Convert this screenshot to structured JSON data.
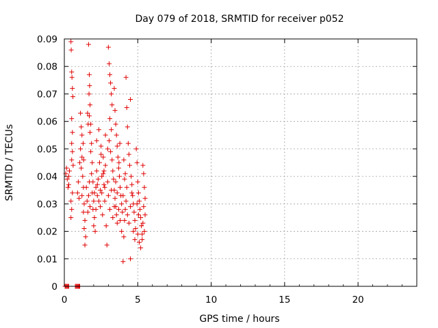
{
  "chart_data": {
    "type": "scatter",
    "title": "Day 079 of 2018, SRMTID for receiver p052",
    "xlabel": "GPS time / hours",
    "ylabel": "SRMTID / TECUs",
    "xlim": [
      0,
      24
    ],
    "ylim": [
      0,
      0.09
    ],
    "x_ticks": [
      0,
      5,
      10,
      15,
      20
    ],
    "x_tick_labels": [
      "0",
      "5",
      "10",
      "15",
      "20"
    ],
    "y_ticks": [
      0,
      0.01,
      0.02,
      0.03,
      0.04,
      0.05,
      0.06,
      0.07,
      0.08,
      0.09
    ],
    "y_tick_labels": [
      "0",
      "0.01",
      "0.02",
      "0.03",
      "0.04",
      "0.05",
      "0.06",
      "0.07",
      "0.08",
      "0.09"
    ],
    "grid": true,
    "marker": "plus",
    "series_color": "#e00000",
    "series": [
      {
        "name": "SRMTID",
        "points": [
          [
            0.05,
            0.0
          ],
          [
            0.1,
            0.0
          ],
          [
            0.15,
            0.0
          ],
          [
            0.2,
            0.0
          ],
          [
            0.25,
            0.0
          ],
          [
            0.3,
            0.0
          ],
          [
            0.75,
            0.0
          ],
          [
            0.8,
            0.0
          ],
          [
            0.85,
            0.0
          ],
          [
            0.9,
            0.0
          ],
          [
            0.95,
            0.0
          ],
          [
            1.0,
            0.0
          ],
          [
            1.05,
            0.0
          ],
          [
            0.1,
            0.041
          ],
          [
            0.15,
            0.043
          ],
          [
            0.2,
            0.039
          ],
          [
            0.25,
            0.036
          ],
          [
            0.3,
            0.04
          ],
          [
            0.45,
            0.089
          ],
          [
            0.47,
            0.086
          ],
          [
            0.5,
            0.078
          ],
          [
            0.52,
            0.076
          ],
          [
            0.55,
            0.072
          ],
          [
            0.58,
            0.069
          ],
          [
            0.5,
            0.061
          ],
          [
            0.55,
            0.056
          ],
          [
            0.5,
            0.052
          ],
          [
            0.55,
            0.049
          ],
          [
            0.5,
            0.046
          ],
          [
            0.6,
            0.044
          ],
          [
            0.45,
            0.031
          ],
          [
            0.5,
            0.028
          ],
          [
            0.45,
            0.025
          ],
          [
            0.55,
            0.034
          ],
          [
            1.1,
            0.063
          ],
          [
            1.15,
            0.058
          ],
          [
            1.2,
            0.055
          ],
          [
            1.1,
            0.05
          ],
          [
            1.2,
            0.047
          ],
          [
            1.15,
            0.043
          ],
          [
            1.25,
            0.04
          ],
          [
            1.3,
            0.036
          ],
          [
            1.2,
            0.033
          ],
          [
            1.35,
            0.03
          ],
          [
            1.3,
            0.027
          ],
          [
            1.4,
            0.024
          ],
          [
            1.35,
            0.021
          ],
          [
            1.45,
            0.018
          ],
          [
            1.4,
            0.015
          ],
          [
            1.65,
            0.088
          ],
          [
            1.7,
            0.077
          ],
          [
            1.72,
            0.073
          ],
          [
            1.68,
            0.07
          ],
          [
            1.75,
            0.066
          ],
          [
            1.7,
            0.062
          ],
          [
            1.8,
            0.059
          ],
          [
            1.75,
            0.056
          ],
          [
            1.85,
            0.052
          ],
          [
            1.8,
            0.049
          ],
          [
            1.9,
            0.045
          ],
          [
            1.85,
            0.041
          ],
          [
            1.95,
            0.038
          ],
          [
            1.9,
            0.034
          ],
          [
            2.0,
            0.031
          ],
          [
            1.95,
            0.028
          ],
          [
            2.05,
            0.025
          ],
          [
            2.0,
            0.022
          ],
          [
            2.1,
            0.02
          ],
          [
            2.15,
            0.036
          ],
          [
            2.2,
            0.042
          ],
          [
            2.25,
            0.033
          ],
          [
            2.3,
            0.039
          ],
          [
            2.4,
            0.045
          ],
          [
            2.45,
            0.029
          ],
          [
            2.5,
            0.048
          ],
          [
            2.55,
            0.034
          ],
          [
            2.6,
            0.026
          ],
          [
            2.65,
            0.041
          ],
          [
            2.7,
            0.037
          ],
          [
            2.75,
            0.031
          ],
          [
            2.8,
            0.044
          ],
          [
            2.85,
            0.022
          ],
          [
            2.9,
            0.015
          ],
          [
            2.95,
            0.038
          ],
          [
            3.0,
            0.087
          ],
          [
            3.05,
            0.081
          ],
          [
            3.1,
            0.077
          ],
          [
            3.15,
            0.074
          ],
          [
            3.2,
            0.07
          ],
          [
            3.25,
            0.066
          ],
          [
            3.1,
            0.061
          ],
          [
            3.2,
            0.057
          ],
          [
            3.05,
            0.053
          ],
          [
            3.15,
            0.049
          ],
          [
            3.25,
            0.046
          ],
          [
            3.3,
            0.042
          ],
          [
            3.35,
            0.039
          ],
          [
            3.4,
            0.035
          ],
          [
            3.45,
            0.032
          ],
          [
            3.5,
            0.029
          ],
          [
            3.55,
            0.026
          ],
          [
            3.6,
            0.023
          ],
          [
            3.4,
            0.072
          ],
          [
            3.45,
            0.064
          ],
          [
            3.5,
            0.059
          ],
          [
            3.55,
            0.055
          ],
          [
            3.6,
            0.051
          ],
          [
            3.65,
            0.047
          ],
          [
            3.7,
            0.043
          ],
          [
            3.75,
            0.04
          ],
          [
            3.8,
            0.036
          ],
          [
            3.85,
            0.033
          ],
          [
            3.9,
            0.03
          ],
          [
            3.95,
            0.027
          ],
          [
            4.0,
            0.009
          ],
          [
            4.05,
            0.018
          ],
          [
            4.1,
            0.024
          ],
          [
            4.15,
            0.028
          ],
          [
            4.2,
            0.031
          ],
          [
            4.25,
            0.036
          ],
          [
            4.2,
            0.076
          ],
          [
            4.25,
            0.065
          ],
          [
            4.3,
            0.058
          ],
          [
            4.35,
            0.052
          ],
          [
            4.4,
            0.048
          ],
          [
            4.45,
            0.044
          ],
          [
            4.5,
            0.068
          ],
          [
            4.5,
            0.01
          ],
          [
            4.55,
            0.04
          ],
          [
            4.6,
            0.037
          ],
          [
            4.65,
            0.033
          ],
          [
            4.7,
            0.03
          ],
          [
            4.75,
            0.027
          ],
          [
            4.8,
            0.024
          ],
          [
            4.85,
            0.021
          ],
          [
            4.9,
            0.05
          ],
          [
            4.95,
            0.045
          ],
          [
            5.0,
            0.038
          ],
          [
            5.05,
            0.034
          ],
          [
            5.1,
            0.031
          ],
          [
            5.15,
            0.028
          ],
          [
            5.2,
            0.025
          ],
          [
            5.25,
            0.022
          ],
          [
            5.3,
            0.019
          ],
          [
            5.35,
            0.044
          ],
          [
            5.4,
            0.041
          ],
          [
            5.45,
            0.036
          ],
          [
            5.5,
            0.032
          ],
          [
            5.4,
            0.029
          ],
          [
            5.5,
            0.026
          ],
          [
            5.35,
            0.023
          ],
          [
            5.45,
            0.02
          ],
          [
            5.3,
            0.017
          ],
          [
            5.2,
            0.014
          ],
          [
            5.1,
            0.016
          ],
          [
            5.0,
            0.019
          ],
          [
            2.2,
            0.053
          ],
          [
            2.35,
            0.057
          ],
          [
            2.5,
            0.051
          ],
          [
            2.65,
            0.047
          ],
          [
            2.8,
            0.055
          ],
          [
            2.95,
            0.05
          ],
          [
            1.5,
            0.036
          ],
          [
            1.55,
            0.031
          ],
          [
            1.6,
            0.027
          ],
          [
            1.65,
            0.033
          ],
          [
            1.7,
            0.038
          ],
          [
            1.75,
            0.029
          ],
          [
            2.05,
            0.034
          ],
          [
            2.15,
            0.028
          ],
          [
            2.25,
            0.037
          ],
          [
            2.35,
            0.031
          ],
          [
            2.45,
            0.035
          ],
          [
            2.55,
            0.04
          ],
          [
            3.0,
            0.033
          ],
          [
            3.1,
            0.028
          ],
          [
            3.2,
            0.035
          ],
          [
            3.3,
            0.025
          ],
          [
            3.4,
            0.029
          ],
          [
            3.5,
            0.038
          ],
          [
            3.6,
            0.034
          ],
          [
            3.7,
            0.028
          ],
          [
            3.8,
            0.024
          ],
          [
            3.9,
            0.02
          ],
          [
            4.0,
            0.033
          ],
          [
            4.1,
            0.039
          ],
          [
            4.3,
            0.026
          ],
          [
            4.4,
            0.023
          ],
          [
            4.5,
            0.029
          ],
          [
            4.6,
            0.034
          ],
          [
            4.7,
            0.02
          ],
          [
            4.8,
            0.017
          ],
          [
            0.3,
            0.037
          ],
          [
            0.35,
            0.042
          ],
          [
            1.0,
            0.032
          ],
          [
            1.05,
            0.045
          ],
          [
            0.95,
            0.038
          ],
          [
            0.9,
            0.034
          ],
          [
            1.28,
            0.052
          ],
          [
            1.32,
            0.046
          ],
          [
            1.58,
            0.063
          ],
          [
            1.62,
            0.059
          ],
          [
            2.7,
            0.042
          ],
          [
            2.75,
            0.036
          ],
          [
            3.72,
            0.045
          ],
          [
            3.78,
            0.052
          ],
          [
            4.05,
            0.046
          ],
          [
            4.15,
            0.041
          ],
          [
            4.95,
            0.03
          ],
          [
            5.05,
            0.026
          ]
        ]
      }
    ]
  }
}
